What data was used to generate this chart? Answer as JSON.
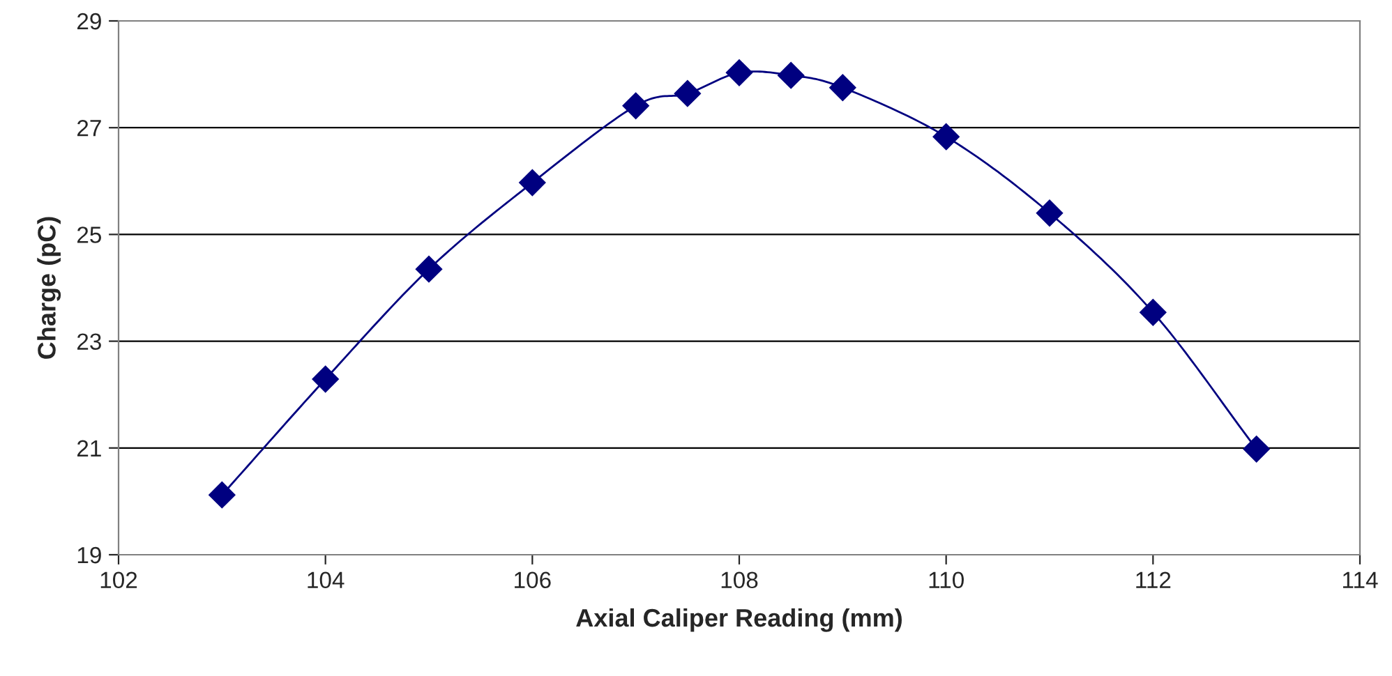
{
  "chart_data": {
    "type": "line",
    "xlabel": "Axial Caliper Reading (mm)",
    "ylabel": "Charge (pC)",
    "x": [
      103,
      104,
      105,
      106,
      107,
      107.5,
      108,
      108.5,
      109,
      110,
      111,
      112,
      113
    ],
    "series": [
      {
        "color": "#000080",
        "values": [
          20.12,
          22.29,
          24.35,
          25.97,
          27.41,
          27.64,
          28.03,
          27.98,
          27.75,
          26.83,
          25.4,
          23.54,
          20.98
        ]
      }
    ],
    "xlim": [
      102,
      114
    ],
    "xticks": [
      102,
      104,
      106,
      108,
      110,
      112,
      114
    ],
    "ylim": [
      19,
      29
    ],
    "yticks": [
      19,
      21,
      23,
      25,
      27,
      29
    ],
    "grid": "y",
    "marker": "diamond",
    "line_style": "solid"
  }
}
